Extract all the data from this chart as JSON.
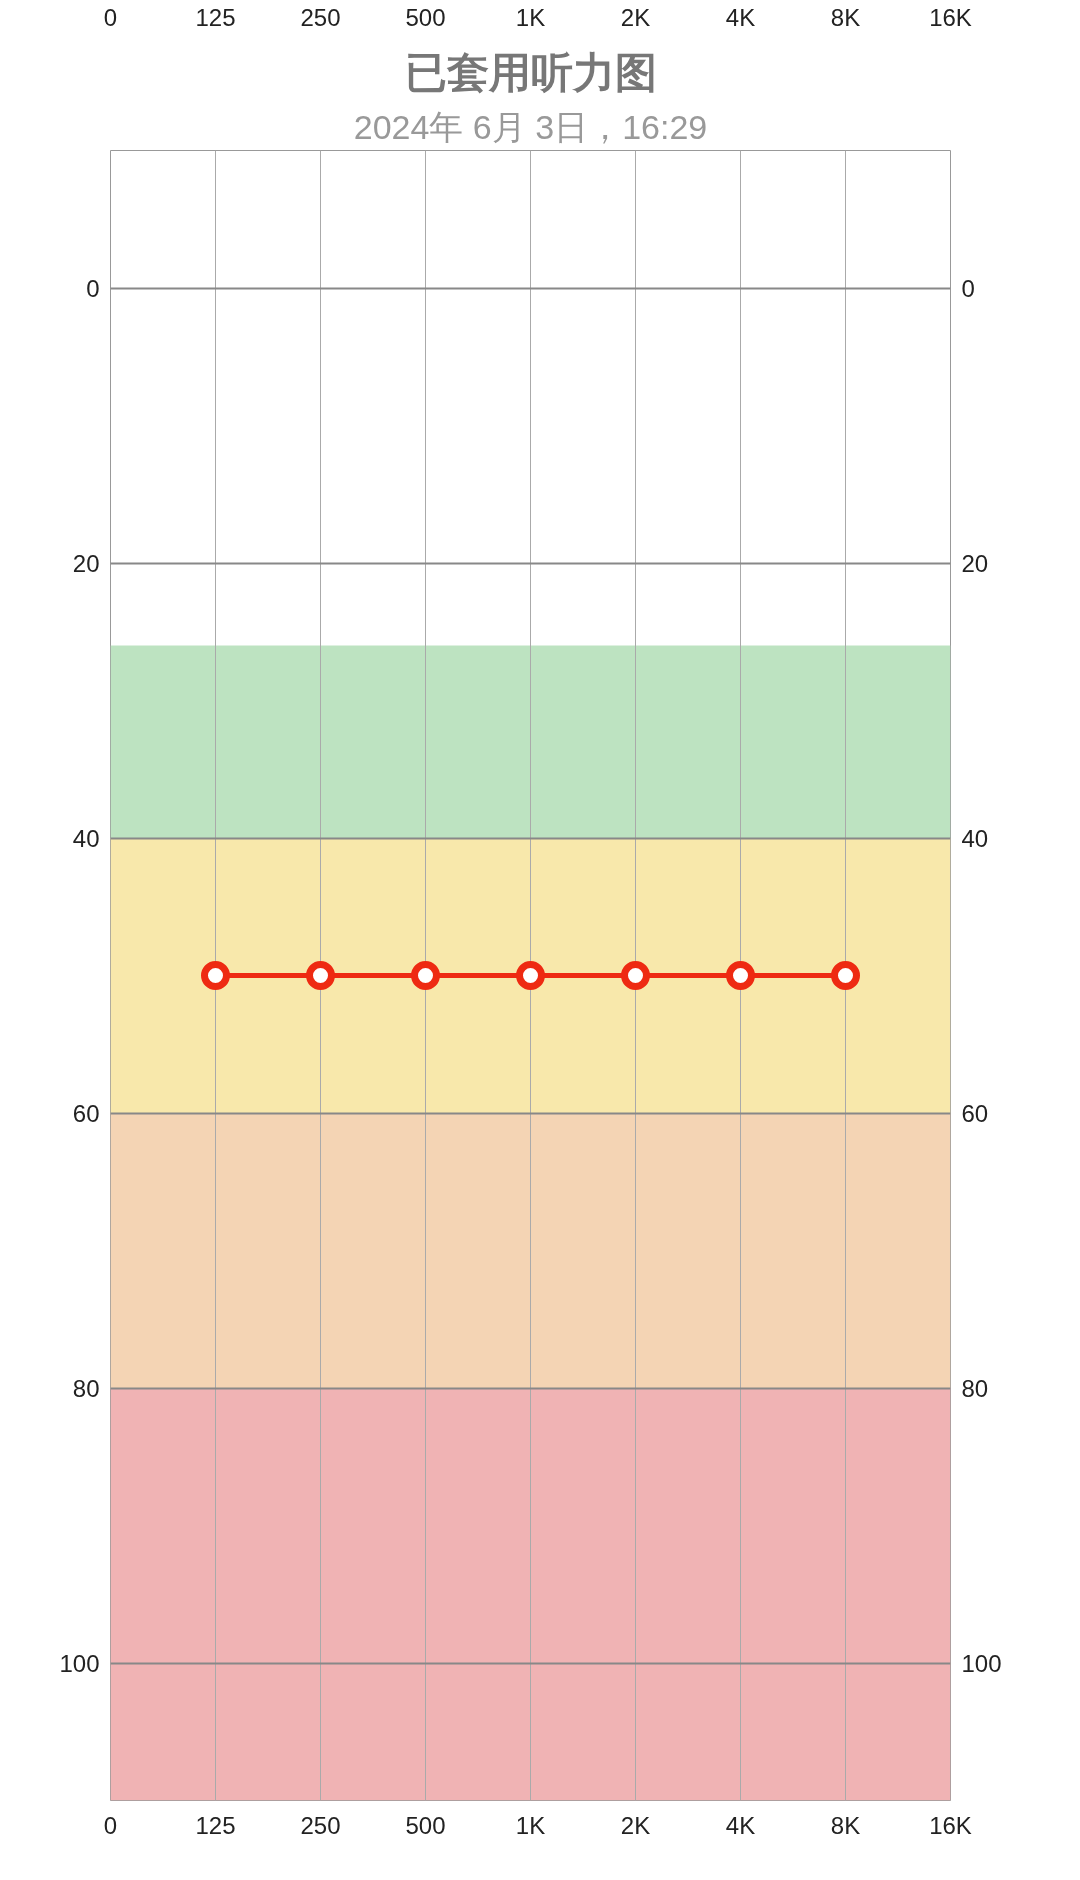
{
  "chart_data": {
    "type": "line",
    "title": "已套用听力图",
    "subtitle": "2024年 6月 3日，16:29",
    "categories": [
      "0",
      "125",
      "250",
      "500",
      "1K",
      "2K",
      "4K",
      "8K",
      "16K"
    ],
    "series": [
      {
        "color": "#ee2a12",
        "values": [
          null,
          50,
          50,
          50,
          50,
          50,
          50,
          50,
          null
        ]
      }
    ],
    "ylim": [
      110,
      -10
    ],
    "yticks": [
      0,
      20,
      40,
      60,
      80,
      100
    ],
    "y2lim": [
      110,
      -10
    ],
    "y2ticks": [
      0,
      20,
      40,
      60,
      80,
      100
    ],
    "bands": [
      {
        "axis": "y",
        "from": 26,
        "to": 40,
        "color": "#bde3c1"
      },
      {
        "axis": "y",
        "from": 40,
        "to": 60,
        "color": "#f8e8ab"
      },
      {
        "axis": "y",
        "from": 60,
        "to": 80,
        "color": "#f4d4b4"
      },
      {
        "axis": "y",
        "from": 80,
        "to": 110,
        "color": "#f0b3b4"
      }
    ],
    "grid": true,
    "marker": "circle",
    "line_style": "solid"
  }
}
